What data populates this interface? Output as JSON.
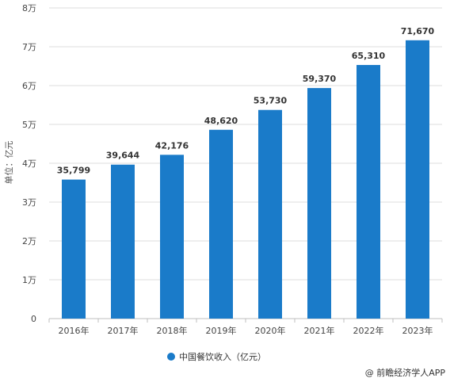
{
  "chart_data": {
    "type": "bar",
    "categories": [
      "2016年",
      "2017年",
      "2018年",
      "2019年",
      "2020年",
      "2021年",
      "2022年",
      "2023年"
    ],
    "series": [
      {
        "name": "中国餐饮收入（亿元）",
        "values": [
          35799,
          39644,
          42176,
          48620,
          53730,
          59370,
          65310,
          71670
        ],
        "data_labels": [
          "35,799",
          "39,644",
          "42,176",
          "48,620",
          "53,730",
          "59,370",
          "65,310",
          "71,670"
        ]
      }
    ],
    "ylabel": "单位：亿元",
    "ylim": [
      0,
      80000
    ],
    "yticks": [
      0,
      10000,
      20000,
      30000,
      40000,
      50000,
      60000,
      70000,
      80000
    ],
    "ytick_labels": [
      "0",
      "1万",
      "2万",
      "3万",
      "4万",
      "5万",
      "6万",
      "7万",
      "8万"
    ],
    "grid": true,
    "legend_position": "bottom",
    "bar_color": "#1a7bc9"
  },
  "source": "@ 前瞻经济学人APP"
}
